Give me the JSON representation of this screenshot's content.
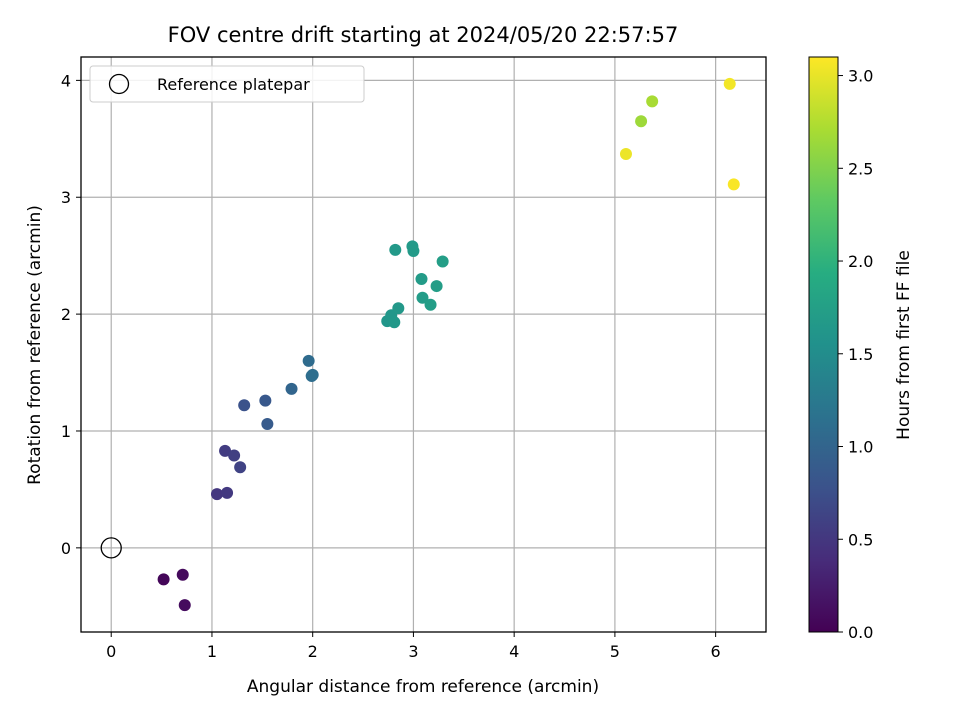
{
  "chart_data": {
    "type": "scatter",
    "title": "FOV centre drift starting at 2024/05/20 22:57:57",
    "xlabel": "Angular distance from reference (arcmin)",
    "ylabel": "Rotation from reference (arcmin)",
    "xlim": [
      -0.3,
      6.5
    ],
    "ylim": [
      -0.72,
      4.2
    ],
    "xticks": [
      0,
      1,
      2,
      3,
      4,
      5,
      6
    ],
    "xtick_labels": [
      "0",
      "1",
      "2",
      "3",
      "4",
      "5",
      "6"
    ],
    "yticks": [
      0,
      1,
      2,
      3,
      4
    ],
    "ytick_labels": [
      "0",
      "1",
      "2",
      "3",
      "4"
    ],
    "grid": true,
    "colorbar": {
      "label": "Hours from first FF file",
      "colormap": "viridis",
      "range": [
        0.0,
        3.1
      ],
      "ticks": [
        0.0,
        0.5,
        1.0,
        1.5,
        2.0,
        2.5,
        3.0
      ],
      "tick_labels": [
        "0.0",
        "0.5",
        "1.0",
        "1.5",
        "2.0",
        "2.5",
        "3.0"
      ]
    },
    "legend": {
      "position": "upper-left",
      "entries": [
        {
          "label": "Reference platepar",
          "marker": "open-circle"
        }
      ]
    },
    "reference_point": {
      "x": 0,
      "y": 0
    },
    "points": [
      {
        "x": 0.52,
        "y": -0.27,
        "c": 0.05
      },
      {
        "x": 0.71,
        "y": -0.23,
        "c": 0.08
      },
      {
        "x": 0.73,
        "y": -0.49,
        "c": 0.1
      },
      {
        "x": 1.05,
        "y": 0.46,
        "c": 0.5
      },
      {
        "x": 1.15,
        "y": 0.47,
        "c": 0.52
      },
      {
        "x": 1.13,
        "y": 0.83,
        "c": 0.55
      },
      {
        "x": 1.22,
        "y": 0.79,
        "c": 0.58
      },
      {
        "x": 1.28,
        "y": 0.69,
        "c": 0.62
      },
      {
        "x": 1.32,
        "y": 1.22,
        "c": 0.78
      },
      {
        "x": 1.53,
        "y": 1.26,
        "c": 0.85
      },
      {
        "x": 1.55,
        "y": 1.06,
        "c": 0.88
      },
      {
        "x": 1.79,
        "y": 1.36,
        "c": 1.0
      },
      {
        "x": 1.96,
        "y": 1.6,
        "c": 1.08
      },
      {
        "x": 1.99,
        "y": 1.47,
        "c": 1.1
      },
      {
        "x": 2.0,
        "y": 1.48,
        "c": 1.12
      },
      {
        "x": 2.74,
        "y": 1.94,
        "c": 1.62
      },
      {
        "x": 2.78,
        "y": 1.99,
        "c": 1.63
      },
      {
        "x": 2.81,
        "y": 1.93,
        "c": 1.64
      },
      {
        "x": 2.85,
        "y": 2.05,
        "c": 1.65
      },
      {
        "x": 2.82,
        "y": 2.55,
        "c": 1.66
      },
      {
        "x": 2.99,
        "y": 2.58,
        "c": 1.67
      },
      {
        "x": 3.0,
        "y": 2.54,
        "c": 1.68
      },
      {
        "x": 3.08,
        "y": 2.3,
        "c": 1.69
      },
      {
        "x": 3.09,
        "y": 2.14,
        "c": 1.7
      },
      {
        "x": 3.17,
        "y": 2.08,
        "c": 1.71
      },
      {
        "x": 3.23,
        "y": 2.24,
        "c": 1.72
      },
      {
        "x": 3.29,
        "y": 2.45,
        "c": 1.73
      },
      {
        "x": 5.26,
        "y": 3.65,
        "c": 2.65
      },
      {
        "x": 5.37,
        "y": 3.82,
        "c": 2.7
      },
      {
        "x": 5.11,
        "y": 3.37,
        "c": 3.02
      },
      {
        "x": 6.14,
        "y": 3.97,
        "c": 3.05
      },
      {
        "x": 6.18,
        "y": 3.11,
        "c": 3.08
      }
    ]
  }
}
